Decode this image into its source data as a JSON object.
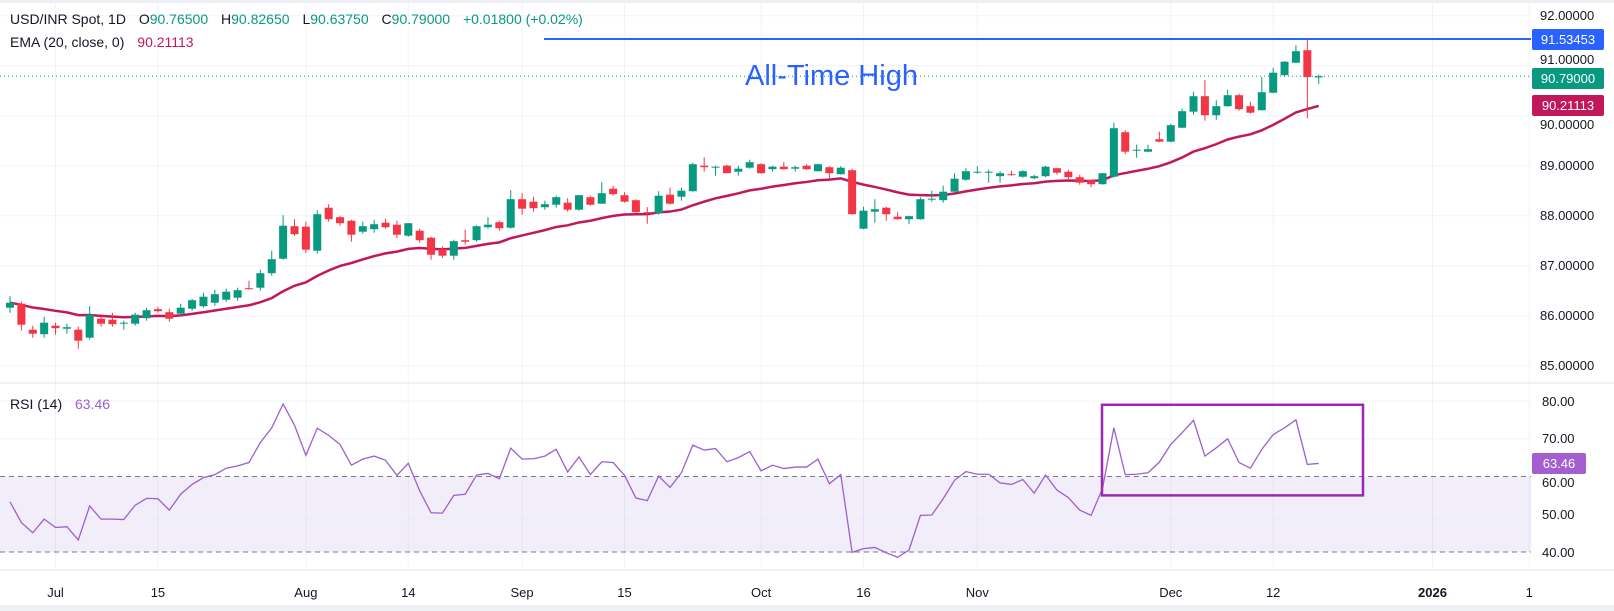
{
  "header": {
    "symbol": "USD/INR Spot, 1D",
    "o_label": "O",
    "o": "90.76500",
    "h_label": "H",
    "h": "90.82650",
    "l_label": "L",
    "l": "90.63750",
    "c_label": "C",
    "c": "90.79000",
    "change": "+0.01800 (+0.02%)"
  },
  "ema_legend": {
    "label": "EMA (20, close, 0)",
    "value": "90.21113"
  },
  "rsi_legend": {
    "label": "RSI (14)",
    "value": "63.46"
  },
  "annotation": {
    "text": "All-Time High",
    "level": 91.53453
  },
  "price_axis": {
    "ticks": [
      "92.00000",
      "91.00000",
      "90.00000",
      "89.00000",
      "88.00000",
      "87.00000",
      "86.00000",
      "85.00000"
    ],
    "ath_label": "91.53453",
    "last_label": "90.79000",
    "ema_label": "90.21113"
  },
  "rsi_axis": {
    "ticks": [
      "80.00",
      "70.00",
      "60.00",
      "50.00",
      "40.00"
    ],
    "last_label": "63.46"
  },
  "time_axis": {
    "ticks": [
      "Jul",
      "15",
      "Aug",
      "14",
      "Sep",
      "15",
      "Oct",
      "16",
      "Nov",
      "Dec",
      "12",
      "2026",
      "1"
    ]
  },
  "colors": {
    "up": "#089981",
    "down": "#f23645",
    "ema": "#c2185b",
    "ath_line": "#2962ff",
    "rsi_line": "#9c5fd0",
    "rsi_band": "#7e57c2",
    "rsi_box": "#9c27b0",
    "rsi_tag": "#a35fd0"
  },
  "chart_data": [
    {
      "type": "candlestick",
      "title": "USD/INR Spot, 1D",
      "ylim": [
        84.7,
        92.3
      ],
      "y_ticks": [
        85,
        86,
        87,
        88,
        89,
        90,
        91,
        92
      ],
      "grid": true,
      "overlay": {
        "name": "EMA (20, close, 0)",
        "period": 20,
        "last": 90.21113
      },
      "horizontal_line": {
        "value": 91.53453,
        "label": "All-Time High"
      },
      "ohlc": [
        [
          86.16,
          86.39,
          86.06,
          86.26
        ],
        [
          86.24,
          86.28,
          85.7,
          85.82
        ],
        [
          85.72,
          85.8,
          85.56,
          85.64
        ],
        [
          85.63,
          85.98,
          85.56,
          85.86
        ],
        [
          85.8,
          85.86,
          85.62,
          85.75
        ],
        [
          85.74,
          85.84,
          85.64,
          85.77
        ],
        [
          85.72,
          85.78,
          85.34,
          85.5
        ],
        [
          85.56,
          86.19,
          85.52,
          86.02
        ],
        [
          85.94,
          85.98,
          85.78,
          85.84
        ],
        [
          85.92,
          86.06,
          85.78,
          85.83
        ],
        [
          85.84,
          85.9,
          85.72,
          85.86
        ],
        [
          85.84,
          86.06,
          85.8,
          86.02
        ],
        [
          85.95,
          86.16,
          85.9,
          86.11
        ],
        [
          86.13,
          86.18,
          86.06,
          86.09
        ],
        [
          86.07,
          86.14,
          85.88,
          85.94
        ],
        [
          86.04,
          86.24,
          86.0,
          86.16
        ],
        [
          86.14,
          86.34,
          86.1,
          86.31
        ],
        [
          86.19,
          86.46,
          86.16,
          86.38
        ],
        [
          86.26,
          86.52,
          86.2,
          86.43
        ],
        [
          86.32,
          86.54,
          86.28,
          86.48
        ],
        [
          86.36,
          86.56,
          86.3,
          86.51
        ],
        [
          86.55,
          86.7,
          86.52,
          86.53
        ],
        [
          86.56,
          86.92,
          86.5,
          86.85
        ],
        [
          86.85,
          87.3,
          86.8,
          87.13
        ],
        [
          87.14,
          88.01,
          87.12,
          87.8
        ],
        [
          87.79,
          87.93,
          87.6,
          87.63
        ],
        [
          87.78,
          87.88,
          87.25,
          87.32
        ],
        [
          87.3,
          88.11,
          87.24,
          88.03
        ],
        [
          88.16,
          88.23,
          87.88,
          87.93
        ],
        [
          87.97,
          88.0,
          87.8,
          87.85
        ],
        [
          87.9,
          87.92,
          87.48,
          87.62
        ],
        [
          87.68,
          87.88,
          87.64,
          87.79
        ],
        [
          87.73,
          87.92,
          87.66,
          87.83
        ],
        [
          87.86,
          87.94,
          87.74,
          87.77
        ],
        [
          87.82,
          87.9,
          87.55,
          87.62
        ],
        [
          87.6,
          87.85,
          87.58,
          87.85
        ],
        [
          87.7,
          87.74,
          87.46,
          87.51
        ],
        [
          87.56,
          87.58,
          87.12,
          87.22
        ],
        [
          87.33,
          87.38,
          87.15,
          87.2
        ],
        [
          87.2,
          87.52,
          87.12,
          87.49
        ],
        [
          87.51,
          87.72,
          87.42,
          87.48
        ],
        [
          87.51,
          87.81,
          87.48,
          87.79
        ],
        [
          87.77,
          87.97,
          87.74,
          87.82
        ],
        [
          87.87,
          87.9,
          87.7,
          87.75
        ],
        [
          87.76,
          88.51,
          87.74,
          88.33
        ],
        [
          88.33,
          88.45,
          88.02,
          88.14
        ],
        [
          88.28,
          88.38,
          88.08,
          88.15
        ],
        [
          88.17,
          88.3,
          88.12,
          88.23
        ],
        [
          88.22,
          88.4,
          88.16,
          88.37
        ],
        [
          88.26,
          88.35,
          88.08,
          88.12
        ],
        [
          88.12,
          88.41,
          88.1,
          88.41
        ],
        [
          88.37,
          88.4,
          88.2,
          88.22
        ],
        [
          88.24,
          88.67,
          88.24,
          88.45
        ],
        [
          88.54,
          88.6,
          88.4,
          88.43
        ],
        [
          88.41,
          88.47,
          88.26,
          88.28
        ],
        [
          88.31,
          88.33,
          88.06,
          88.07
        ],
        [
          88.07,
          88.17,
          87.84,
          88.06
        ],
        [
          88.05,
          88.49,
          88.02,
          88.4
        ],
        [
          88.42,
          88.56,
          88.22,
          88.24
        ],
        [
          88.38,
          88.56,
          88.3,
          88.5
        ],
        [
          88.49,
          89.06,
          88.48,
          89.03
        ],
        [
          89.0,
          89.17,
          88.88,
          88.97
        ],
        [
          88.96,
          89.0,
          88.8,
          88.98
        ],
        [
          89.0,
          89.02,
          88.85,
          88.85
        ],
        [
          88.88,
          89.0,
          88.8,
          88.94
        ],
        [
          88.96,
          89.12,
          88.94,
          89.07
        ],
        [
          89.03,
          89.05,
          88.84,
          88.85
        ],
        [
          88.93,
          89.0,
          88.88,
          88.98
        ],
        [
          88.98,
          89.07,
          88.92,
          88.93
        ],
        [
          88.94,
          89.0,
          88.88,
          88.97
        ],
        [
          89.0,
          89.03,
          88.92,
          88.93
        ],
        [
          88.89,
          89.04,
          88.88,
          89.03
        ],
        [
          88.97,
          88.99,
          88.74,
          88.85
        ],
        [
          88.83,
          88.99,
          88.82,
          88.96
        ],
        [
          88.91,
          88.94,
          88.02,
          88.03
        ],
        [
          87.74,
          88.18,
          87.73,
          88.1
        ],
        [
          88.08,
          88.33,
          87.86,
          88.13
        ],
        [
          88.16,
          88.18,
          87.9,
          88.03
        ],
        [
          87.98,
          88.07,
          87.92,
          87.93
        ],
        [
          87.93,
          88.0,
          87.83,
          87.99
        ],
        [
          87.93,
          88.37,
          87.92,
          88.33
        ],
        [
          88.32,
          88.5,
          88.28,
          88.34
        ],
        [
          88.31,
          88.6,
          88.26,
          88.48
        ],
        [
          88.48,
          88.85,
          88.46,
          88.74
        ],
        [
          88.72,
          88.95,
          88.7,
          88.89
        ],
        [
          88.87,
          88.99,
          88.84,
          88.88
        ],
        [
          88.86,
          88.92,
          88.66,
          88.88
        ],
        [
          88.79,
          88.89,
          88.66,
          88.85
        ],
        [
          88.83,
          88.9,
          88.8,
          88.81
        ],
        [
          88.78,
          88.91,
          88.76,
          88.89
        ],
        [
          88.75,
          88.82,
          88.73,
          88.79
        ],
        [
          88.79,
          89.0,
          88.77,
          88.98
        ],
        [
          88.95,
          88.96,
          88.82,
          88.86
        ],
        [
          88.88,
          88.92,
          88.73,
          88.77
        ],
        [
          88.77,
          88.82,
          88.62,
          88.66
        ],
        [
          88.71,
          88.72,
          88.57,
          88.63
        ],
        [
          88.63,
          88.85,
          88.62,
          88.85
        ],
        [
          88.78,
          89.86,
          88.76,
          89.75
        ],
        [
          89.67,
          89.71,
          89.23,
          89.28
        ],
        [
          89.3,
          89.42,
          89.16,
          89.32
        ],
        [
          89.28,
          89.42,
          89.27,
          89.33
        ],
        [
          89.53,
          89.68,
          89.47,
          89.48
        ],
        [
          89.48,
          89.84,
          89.47,
          89.81
        ],
        [
          89.76,
          90.14,
          89.75,
          90.09
        ],
        [
          90.08,
          90.48,
          90.02,
          90.39
        ],
        [
          90.39,
          90.71,
          89.9,
          90.01
        ],
        [
          90.01,
          90.31,
          89.92,
          90.19
        ],
        [
          90.19,
          90.52,
          90.18,
          90.41
        ],
        [
          90.41,
          90.44,
          90.1,
          90.13
        ],
        [
          90.19,
          90.28,
          90.04,
          90.06
        ],
        [
          90.11,
          90.77,
          90.1,
          90.47
        ],
        [
          90.46,
          90.96,
          90.45,
          90.86
        ],
        [
          90.81,
          91.09,
          90.78,
          91.08
        ],
        [
          91.06,
          91.41,
          91.05,
          91.29
        ],
        [
          91.31,
          91.53453,
          89.95,
          90.772
        ],
        [
          90.765,
          90.8265,
          90.6375,
          90.79
        ]
      ]
    },
    {
      "type": "line",
      "title": "RSI (14)",
      "y_ticks": [
        40,
        50,
        60,
        70,
        80
      ],
      "bands": [
        40,
        60
      ],
      "highlight_box": {
        "from_bar": 97,
        "to_bar": 116,
        "range": [
          55,
          79
        ]
      },
      "values": [
        53.3,
        47.8,
        45.1,
        48.7,
        46.5,
        46.7,
        43.2,
        52.2,
        48.7,
        48.7,
        48.6,
        52.4,
        54.2,
        54.1,
        51.1,
        55.3,
        57.9,
        59.7,
        60.5,
        62.2,
        62.8,
        63.7,
        69.0,
        72.9,
        79.2,
        73.6,
        65.6,
        72.8,
        70.9,
        68.5,
        63.0,
        64.6,
        65.4,
        64.3,
        60.3,
        63.5,
        56.2,
        50.4,
        50.3,
        55.0,
        55.3,
        60.4,
        60.8,
        59.4,
        67.5,
        64.6,
        64.7,
        65.4,
        67.2,
        61.2,
        65.2,
        60.5,
        63.9,
        63.7,
        60.3,
        54.3,
        53.6,
        60.1,
        57.1,
        61.0,
        68.3,
        67.0,
        67.4,
        63.9,
        65.0,
        66.6,
        61.5,
        63.0,
        62.1,
        62.5,
        62.5,
        64.6,
        58.1,
        60.5,
        39.9,
        40.9,
        41.2,
        39.8,
        38.6,
        40.5,
        49.7,
        49.8,
        54.1,
        59.0,
        61.3,
        60.6,
        60.6,
        58.3,
        57.9,
        59.2,
        55.6,
        60.4,
        56.4,
        54.4,
        51.1,
        49.7,
        56.8,
        72.9,
        60.5,
        60.6,
        61.0,
        63.8,
        68.5,
        71.6,
        74.9,
        65.4,
        67.6,
        70.0,
        63.7,
        62.2,
        67.2,
        71.1,
        72.9,
        75.0,
        63.2,
        63.46
      ]
    }
  ]
}
